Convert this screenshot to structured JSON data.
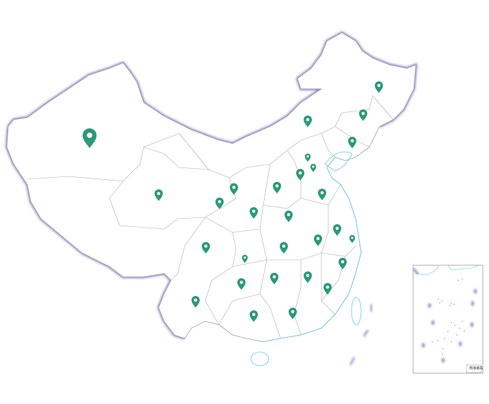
{
  "map": {
    "region": "China",
    "colors": {
      "marker": "#2a9a78",
      "border": "#9a9a9a",
      "coast_shadow": "#a9a3d4",
      "water": "#5cc8f0",
      "islands": "#e070b0"
    },
    "inset": {
      "label": "南海诸岛"
    },
    "markers": [
      {
        "region": "xinjiang",
        "size": "large"
      },
      {
        "region": "tibet",
        "size": "normal"
      },
      {
        "region": "qinghai",
        "size": "normal"
      },
      {
        "region": "gansu",
        "size": "normal"
      },
      {
        "region": "ningxia",
        "size": "normal"
      },
      {
        "region": "inner-mongolia",
        "size": "normal"
      },
      {
        "region": "heilongjiang",
        "size": "normal"
      },
      {
        "region": "jilin",
        "size": "normal"
      },
      {
        "region": "liaoning",
        "size": "normal"
      },
      {
        "region": "beijing",
        "size": "small"
      },
      {
        "region": "tianjin",
        "size": "small"
      },
      {
        "region": "hebei",
        "size": "normal"
      },
      {
        "region": "shanxi",
        "size": "normal"
      },
      {
        "region": "shandong",
        "size": "normal"
      },
      {
        "region": "henan",
        "size": "normal"
      },
      {
        "region": "jiangsu",
        "size": "normal"
      },
      {
        "region": "shanghai",
        "size": "small"
      },
      {
        "region": "anhui",
        "size": "normal"
      },
      {
        "region": "hubei",
        "size": "normal"
      },
      {
        "region": "chongqing",
        "size": "small"
      },
      {
        "region": "sichuan",
        "size": "normal"
      },
      {
        "region": "zhejiang",
        "size": "normal"
      },
      {
        "region": "hunan",
        "size": "normal"
      },
      {
        "region": "jiangxi",
        "size": "normal"
      },
      {
        "region": "guizhou",
        "size": "normal"
      },
      {
        "region": "fujian",
        "size": "normal"
      },
      {
        "region": "yunnan",
        "size": "normal"
      },
      {
        "region": "guangxi",
        "size": "normal"
      },
      {
        "region": "guangdong",
        "size": "normal"
      }
    ]
  }
}
